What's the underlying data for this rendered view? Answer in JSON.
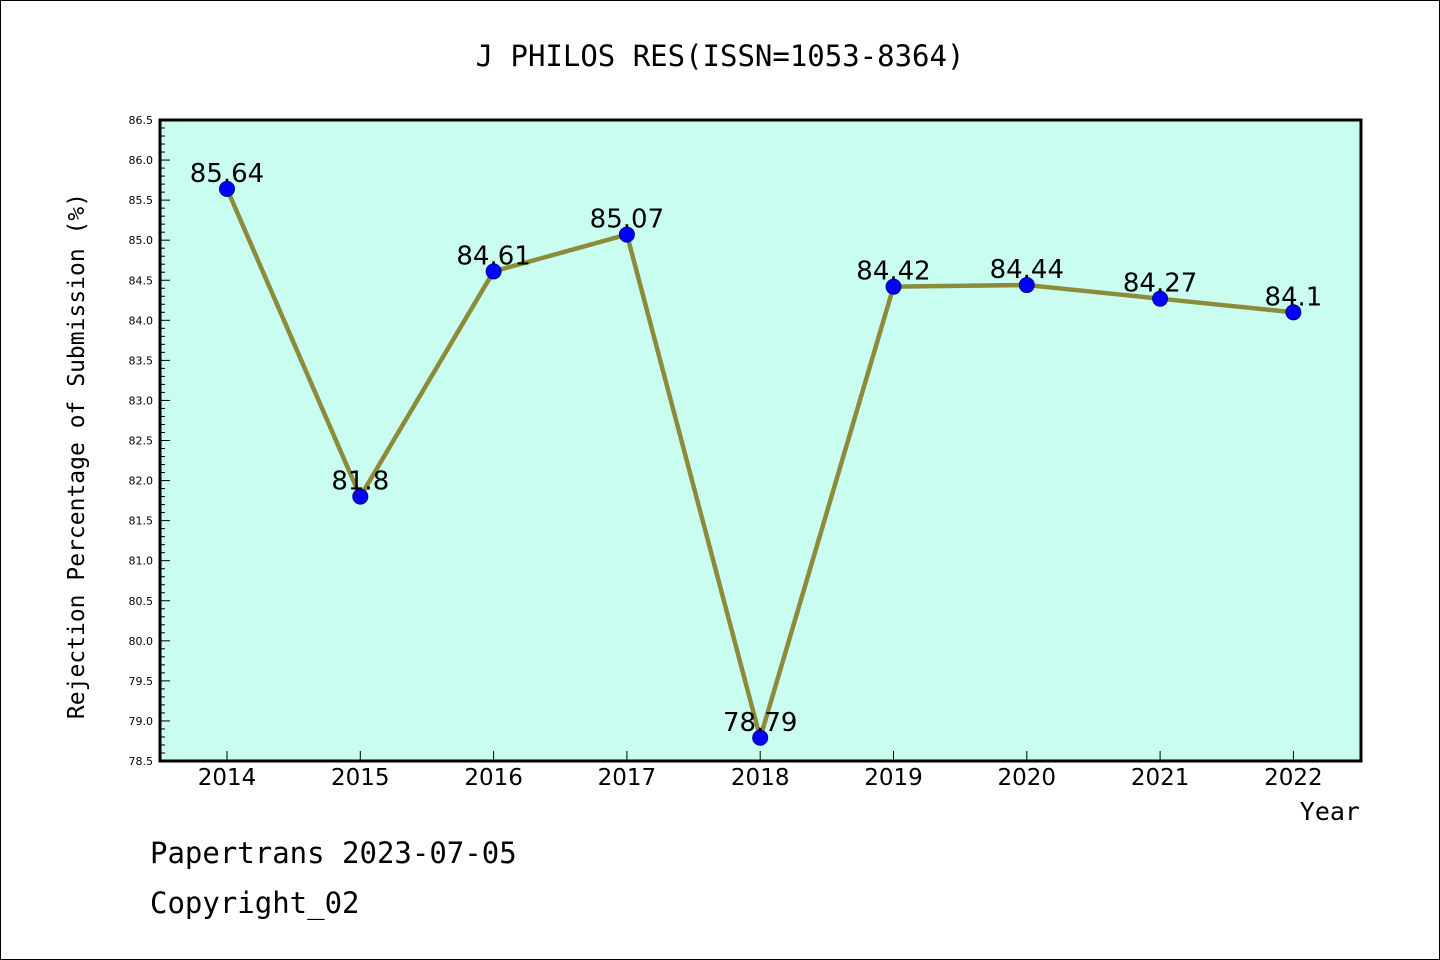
{
  "chart_data": {
    "type": "line",
    "title": "J PHILOS RES(ISSN=1053-8364)",
    "xlabel": "Year",
    "ylabel": "Rejection Percentage of Submission (%)",
    "categories": [
      "2014",
      "2015",
      "2016",
      "2017",
      "2018",
      "2019",
      "2020",
      "2021",
      "2022"
    ],
    "values": [
      85.64,
      81.8,
      84.61,
      85.07,
      78.79,
      84.42,
      84.44,
      84.27,
      84.1
    ],
    "data_labels": [
      "85.64",
      "81.8",
      "84.61",
      "85.07",
      "78.79",
      "84.42",
      "84.44",
      "84.27",
      "84.1"
    ],
    "ylim": [
      78.5,
      86.5
    ],
    "yticks": [
      "78.5",
      "79.0",
      "79.5",
      "80.0",
      "80.5",
      "81.0",
      "81.5",
      "82.0",
      "82.5",
      "83.0",
      "83.5",
      "84.0",
      "84.5",
      "85.0",
      "85.5",
      "86.0",
      "86.5"
    ],
    "grid": false,
    "legend": "none",
    "colors": {
      "plot_background": "#c8fdef",
      "line": "#8b8b3a",
      "marker": "#0000ff"
    }
  },
  "footer": {
    "line1": "Papertrans 2023-07-05",
    "line2": "Copyright_02"
  }
}
